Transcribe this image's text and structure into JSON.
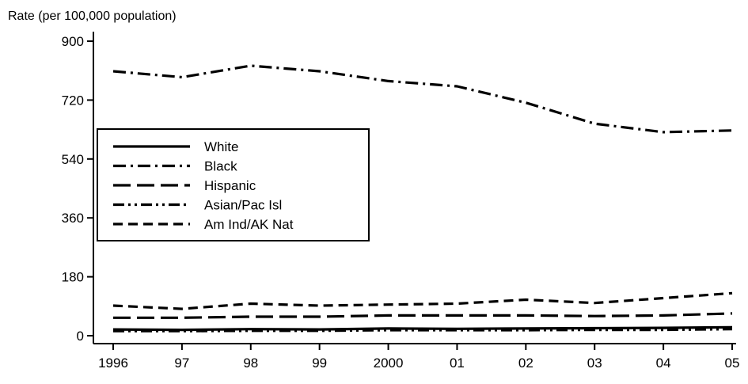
{
  "chart_data": {
    "type": "line",
    "title": "",
    "xlabel": "",
    "ylabel": "Rate (per 100,000 population)",
    "categories": [
      "1996",
      "97",
      "98",
      "99",
      "2000",
      "01",
      "02",
      "03",
      "04",
      "05"
    ],
    "ylim": [
      0,
      900
    ],
    "yticks": [
      0,
      180,
      360,
      540,
      720,
      900
    ],
    "grid": false,
    "legend_position": "left",
    "series": [
      {
        "name": "White",
        "style": "solid",
        "values": [
          19,
          18,
          20,
          19,
          22,
          21,
          22,
          23,
          24,
          26
        ]
      },
      {
        "name": "Black",
        "style": "dash-dot",
        "values": [
          808,
          790,
          825,
          808,
          778,
          762,
          712,
          648,
          622,
          627
        ]
      },
      {
        "name": "Hispanic",
        "style": "long-dash",
        "values": [
          55,
          55,
          58,
          58,
          62,
          62,
          62,
          60,
          62,
          68
        ]
      },
      {
        "name": "Asian/Pac Isl",
        "style": "dash-dot-dot",
        "values": [
          14,
          14,
          15,
          15,
          17,
          17,
          17,
          18,
          18,
          20
        ]
      },
      {
        "name": "Am Ind/AK Nat",
        "style": "dashed",
        "values": [
          92,
          82,
          98,
          92,
          95,
          98,
          110,
          100,
          115,
          130
        ]
      }
    ]
  }
}
